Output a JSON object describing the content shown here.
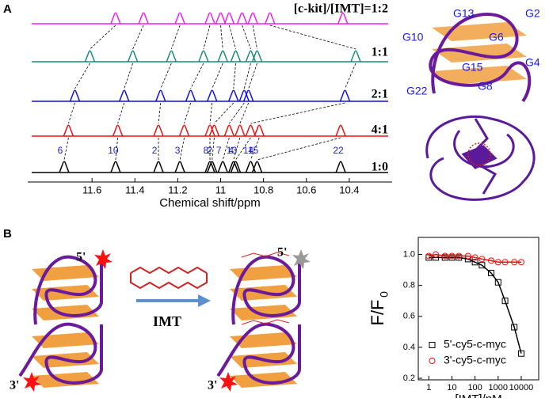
{
  "panel_labels": [
    "A",
    "B"
  ],
  "chart_data": [
    {
      "type": "spectrum",
      "xlabel": "Chemical shift/ppm",
      "xlim": [
        11.9,
        10.2
      ],
      "xticks": [
        11.6,
        11.4,
        11.2,
        11.0,
        10.8,
        10.6,
        10.4
      ],
      "series": [
        {
          "name": "[c-kit]/[IMT]=1:2",
          "color": "#ee22ee",
          "peaks": [
            11.49,
            11.36,
            11.19,
            11.05,
            11.0,
            10.96,
            10.9,
            10.85,
            10.77,
            10.43
          ]
        },
        {
          "name": "1:1",
          "color": "#1a8a7a",
          "peaks": [
            11.61,
            11.41,
            11.23,
            11.08,
            10.99,
            10.93,
            10.86,
            10.83,
            10.37
          ]
        },
        {
          "name": "2:1",
          "color": "#1010e0",
          "peaks": [
            11.68,
            11.45,
            11.28,
            11.14,
            11.04,
            10.94,
            10.89,
            10.87,
            10.42
          ]
        },
        {
          "name": "4:1",
          "color": "#ee1111",
          "peaks": [
            11.71,
            11.48,
            11.29,
            11.17,
            11.05,
            11.03,
            10.96,
            10.91,
            10.86,
            10.82,
            10.44
          ]
        },
        {
          "name": "1:0",
          "color": "#000000",
          "peaks": [
            11.73,
            11.49,
            11.29,
            11.19,
            11.05,
            11.04,
            10.99,
            10.94,
            10.93,
            10.86,
            10.83,
            10.44
          ],
          "peak_labels": [
            "6",
            "10",
            "2",
            "3",
            "8",
            "2",
            "7",
            "4",
            "13",
            "14",
            "15",
            "22"
          ]
        }
      ]
    },
    {
      "type": "scatter",
      "xlabel": "[IMT]/nM",
      "ylabel": "F/F",
      "ylabel_subscript": "0",
      "log_x": true,
      "xlim": [
        0.35,
        57000
      ],
      "xticks": [
        1,
        10,
        100,
        1000,
        10000
      ],
      "ylim": [
        0.19,
        1.11
      ],
      "yticks": [
        {
          "value": 0.2,
          "label": "0.2"
        },
        {
          "value": 0.4,
          "label": "0.4"
        },
        {
          "value": 0.6,
          "label": "0.6"
        },
        {
          "value": 0.8,
          "label": "0.8"
        },
        {
          "value": 1.0,
          "label": "1.0"
        }
      ],
      "x": [
        1,
        2,
        5,
        10,
        20,
        50,
        100,
        200,
        500,
        1000,
        2000,
        5000,
        10000
      ],
      "series": [
        {
          "name": "5'-cy5-c-myc",
          "color": "#000000",
          "marker": "square",
          "line_color": "#000000",
          "values": [
            0.98,
            0.98,
            0.98,
            0.98,
            0.98,
            0.97,
            0.95,
            0.93,
            0.88,
            0.82,
            0.7,
            0.53,
            0.36
          ]
        },
        {
          "name": "3'-cy5-c-myc",
          "color": "#ee1111",
          "marker": "circle",
          "line_color": "#ee1111",
          "values": [
            0.99,
            1.0,
            0.99,
            0.99,
            0.99,
            0.99,
            0.98,
            0.97,
            0.96,
            0.95,
            0.95,
            0.95,
            0.95
          ]
        }
      ]
    }
  ],
  "diagram": {
    "g_labels": [
      "G13",
      "G2",
      "G10",
      "G6",
      "G15",
      "G4",
      "G22",
      "G8"
    ],
    "end_labels": [
      "5'",
      "5'",
      "3'",
      "3'"
    ],
    "arrow_label": "IMT"
  }
}
